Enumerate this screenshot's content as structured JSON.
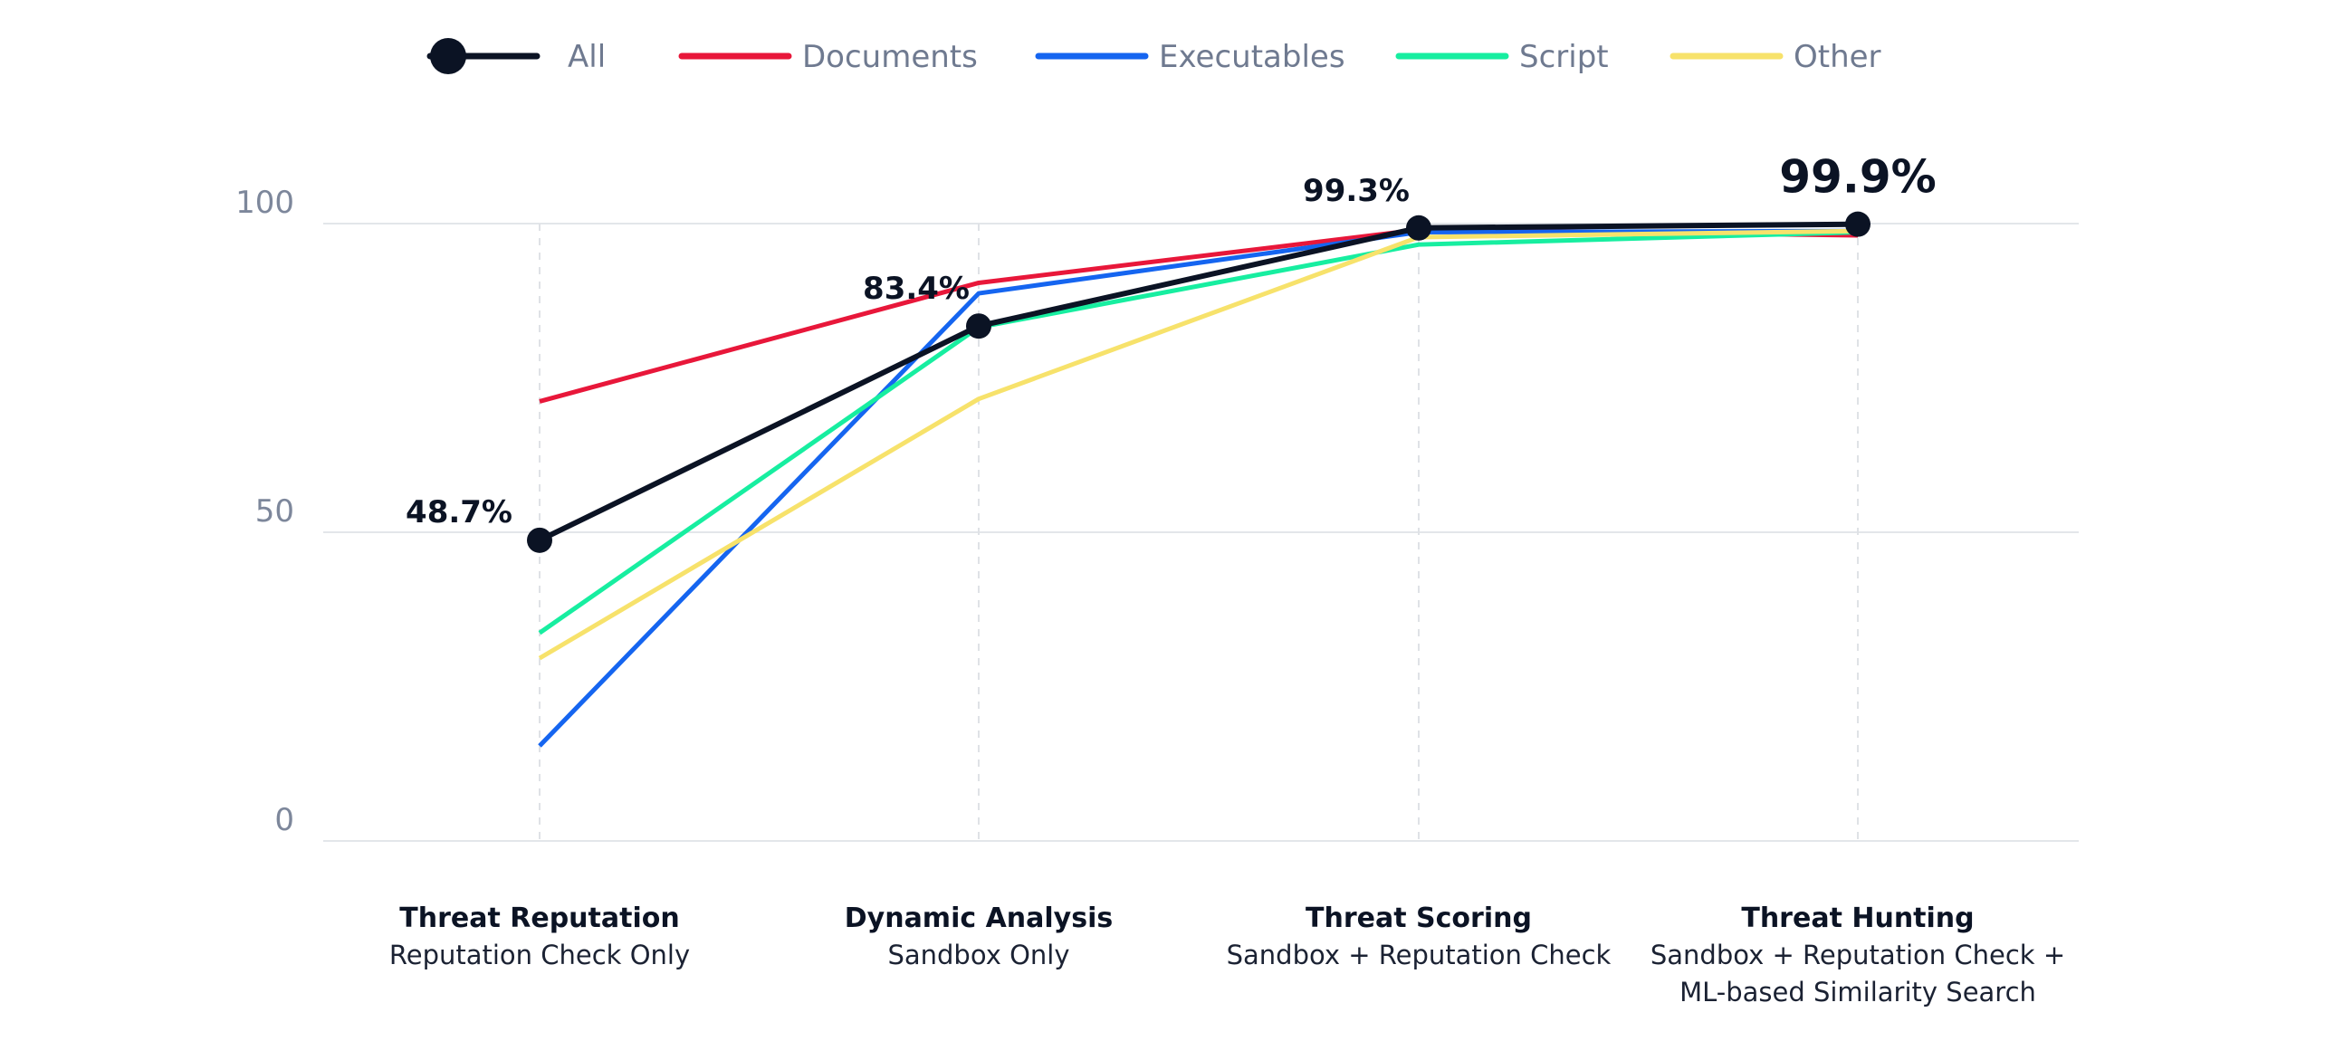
{
  "chart_data": {
    "type": "line",
    "categories": [
      {
        "title": "Threat Reputation",
        "subtitle": [
          "Reputation Check Only"
        ]
      },
      {
        "title": "Dynamic Analysis",
        "subtitle": [
          "Sandbox Only"
        ]
      },
      {
        "title": "Threat Scoring",
        "subtitle": [
          "Sandbox + Reputation Check"
        ]
      },
      {
        "title": "Threat Hunting",
        "subtitle": [
          "Sandbox + Reputation Check +",
          "ML-based Similarity Search"
        ]
      }
    ],
    "series": [
      {
        "name": "Documents",
        "color": "#e8173a",
        "values": [
          71.2,
          90.4,
          99.0,
          98.1
        ]
      },
      {
        "name": "Executables",
        "color": "#1565f0",
        "values": [
          15.4,
          88.7,
          98.6,
          98.8
        ]
      },
      {
        "name": "Script",
        "color": "#17eea0",
        "values": [
          33.7,
          83.2,
          96.6,
          98.6
        ]
      },
      {
        "name": "Other",
        "color": "#f7e26b",
        "values": [
          29.6,
          71.6,
          97.8,
          98.8
        ]
      },
      {
        "name": "All",
        "color": "#0b1324",
        "values": [
          48.7,
          83.4,
          99.3,
          99.9
        ],
        "markers": true
      }
    ],
    "data_labels": [
      "48.7%",
      "83.4%",
      "99.3%",
      "99.9%"
    ],
    "legend_order": [
      "All",
      "Documents",
      "Executables",
      "Script",
      "Other"
    ],
    "yticks": [
      "0",
      "50",
      "100"
    ],
    "ylim": [
      0,
      100
    ],
    "grid": "horizontal",
    "legend": "top"
  }
}
